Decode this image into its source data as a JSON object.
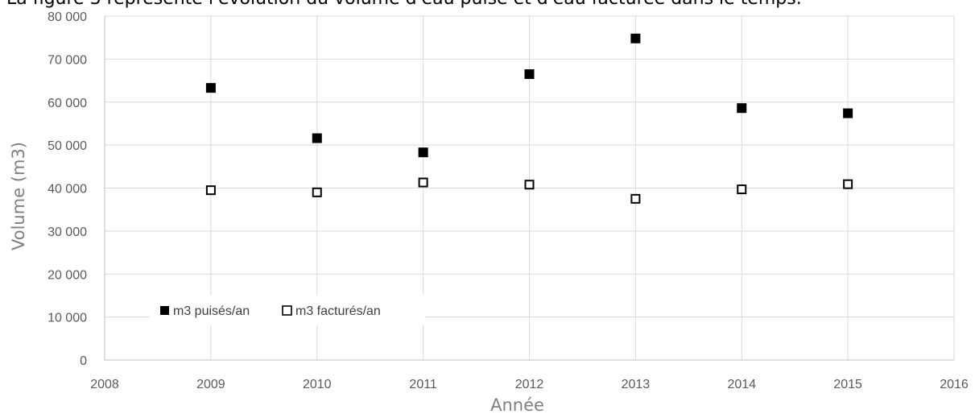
{
  "caption": "La figure 3 représente l'évolution du volume d'eau puisé et d'eau facturée dans le temps.",
  "chart_data": {
    "type": "scatter",
    "title": "",
    "xlabel": "Année",
    "ylabel": "Volume (m3)",
    "xlim": [
      2008,
      2016
    ],
    "ylim": [
      0,
      80000
    ],
    "x_ticks": [
      "2008",
      "2009",
      "2010",
      "2011",
      "2012",
      "2013",
      "2014",
      "2015",
      "2016"
    ],
    "y_ticks": [
      "0",
      "10 000",
      "20 000",
      "30 000",
      "40 000",
      "50 000",
      "60 000",
      "70 000",
      "80 000"
    ],
    "grid": "vertical and horizontal major gridlines",
    "legend_position": "lower-left, inside plot",
    "series": [
      {
        "name": "m3 puisés/an",
        "marker": "filled-square",
        "color": "#000000",
        "x": [
          2009,
          2010,
          2011,
          2012,
          2013,
          2014,
          2015
        ],
        "y": [
          63300,
          51600,
          48300,
          66500,
          74800,
          58600,
          57400
        ]
      },
      {
        "name": "m3 facturés/an",
        "marker": "open-square",
        "color": "#000000",
        "x": [
          2009,
          2010,
          2011,
          2012,
          2013,
          2014,
          2015
        ],
        "y": [
          39500,
          39000,
          41300,
          40800,
          37500,
          39700,
          40900
        ]
      }
    ]
  }
}
